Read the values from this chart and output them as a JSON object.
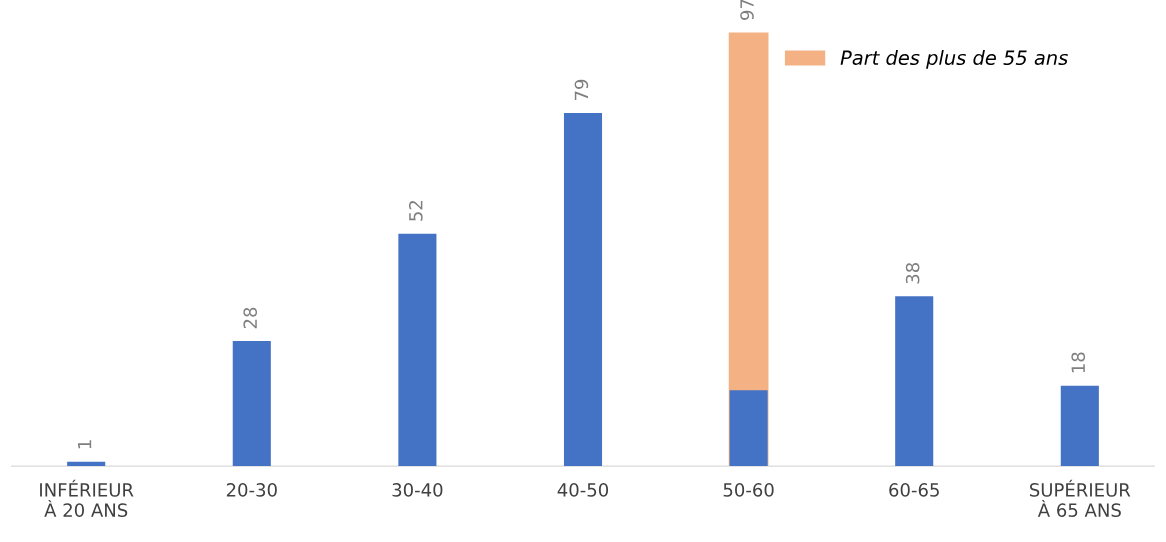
{
  "chart_data": {
    "type": "bar",
    "categories": [
      "INFÉRIEUR\nÀ 20 ANS",
      "20-30",
      "30-40",
      "40-50",
      "50-60",
      "60-65",
      "SUPÉRIEUR\nÀ 65 ANS"
    ],
    "series": [
      {
        "name": "Part des plus de 55 ans",
        "color": "#f4b183",
        "values": [
          null,
          null,
          null,
          null,
          97,
          null,
          null
        ],
        "value_labels": [
          null,
          null,
          null,
          null,
          "97",
          null,
          null
        ]
      },
      {
        "color": "#4472c4",
        "values": [
          1,
          28,
          52,
          79,
          17,
          38,
          18
        ],
        "value_labels": [
          "1",
          "28",
          "52",
          "79",
          null,
          "38",
          "18"
        ]
      }
    ],
    "legend": "top right",
    "grid": false
  }
}
